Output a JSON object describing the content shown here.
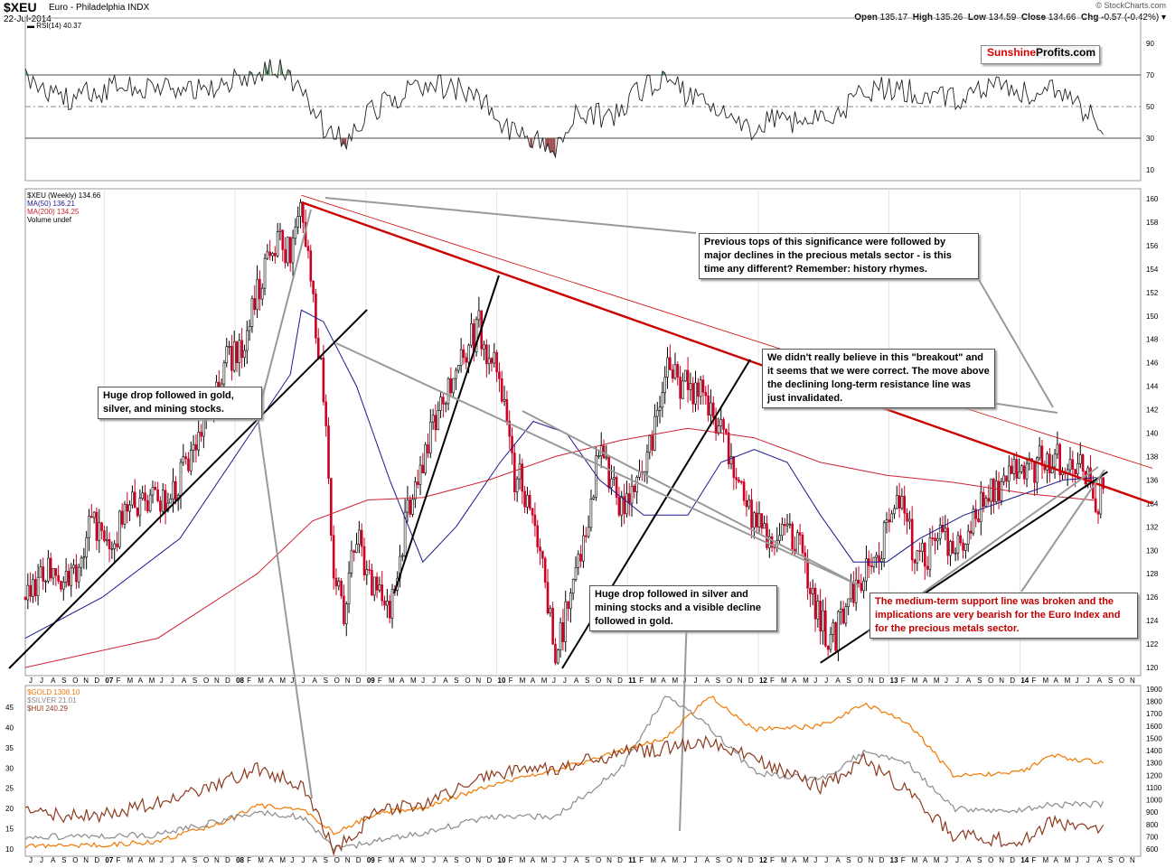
{
  "header": {
    "symbol": "$XEU",
    "name": "Euro - Philadelphia INDX",
    "date": "22-Jul-2014",
    "credit": "© StockCharts.com",
    "open_label": "Open",
    "open": "135.17",
    "high_label": "High",
    "high": "135.26",
    "low_label": "Low",
    "low": "134.59",
    "close_label": "Close",
    "close": "134.66",
    "chg_label": "Chg",
    "chg": "-0.57 (-0.42%)"
  },
  "watermark": {
    "part1": "Sunshine",
    "part2": "Profits.com"
  },
  "legends": {
    "rsi": "RSI(14) 40.37",
    "main": [
      "$XEU (Weekly) 134.66",
      "MA(50) 136.21",
      "MA(200) 134.25",
      "Volume undef"
    ],
    "bottom": [
      "$GOLD 1308.10",
      "$SILVER 21.01",
      "$HUI 240.29"
    ]
  },
  "annotations": {
    "tops": "Previous tops of this significance were followed by major declines in the precious metals sector - is this time any different? Remember: history rhymes.",
    "breakout": "We didn't really believe in this \"breakout\" and it seems that we were correct. The move above the declining long-term resistance line was just invalidated.",
    "drop2008": "Huge drop followed in gold, silver, and mining stocks.",
    "drop2010": "Huge drop followed in silver and mining stocks and a visible decline followed in gold.",
    "support": "The medium-term support line was broken and the implications are very bearish for the Euro Index and for the precious metals sector."
  },
  "colors": {
    "price_up": "#000000",
    "price_down": "#cc0022",
    "ma50": "#1a1a8c",
    "ma200": "#cc2233",
    "resistance": "#cc0000",
    "gold": "#f07800",
    "silver": "#8c8c8c",
    "hui": "#8c3a1e",
    "rsi_over": "#5a9a6a",
    "rsi_under": "#9a5050"
  },
  "chart_data": [
    {
      "type": "line",
      "title": "RSI(14) 40.37",
      "ylim": [
        0,
        100
      ],
      "y_ticks": [
        10,
        30,
        50,
        70,
        90
      ],
      "reference_lines": [
        30,
        50,
        70
      ],
      "x": [
        "2006-06",
        "2006-10",
        "2007-02",
        "2007-06",
        "2007-10",
        "2008-02",
        "2008-05",
        "2008-07",
        "2008-09",
        "2008-11",
        "2009-01",
        "2009-03",
        "2009-05",
        "2009-08",
        "2009-11",
        "2010-01",
        "2010-03",
        "2010-05",
        "2010-06",
        "2010-08",
        "2010-11",
        "2011-01",
        "2011-04",
        "2011-06",
        "2011-08",
        "2011-10",
        "2011-12",
        "2012-02",
        "2012-05",
        "2012-08",
        "2012-10",
        "2013-01",
        "2013-04",
        "2013-07",
        "2013-10",
        "2014-01",
        "2014-03",
        "2014-05",
        "2014-07"
      ],
      "values": [
        66,
        55,
        62,
        64,
        60,
        69,
        76,
        60,
        38,
        28,
        46,
        55,
        60,
        63,
        58,
        36,
        33,
        28,
        22,
        48,
        42,
        58,
        68,
        56,
        52,
        44,
        36,
        42,
        40,
        49,
        59,
        63,
        54,
        57,
        61,
        59,
        62,
        53,
        40
      ]
    },
    {
      "type": "candlestick",
      "title": "$XEU (Weekly) 134.66",
      "ylim": [
        119,
        161
      ],
      "y_ticks": [
        120,
        122,
        124,
        126,
        128,
        130,
        132,
        134,
        136,
        138,
        140,
        142,
        144,
        146,
        148,
        150,
        152,
        154,
        156,
        158,
        160
      ],
      "x_ticks": [
        "J",
        "J",
        "A",
        "S",
        "O",
        "N",
        "D",
        "07",
        "F",
        "M",
        "A",
        "M",
        "J",
        "J",
        "A",
        "S",
        "O",
        "N",
        "D",
        "08",
        "F",
        "M",
        "A",
        "M",
        "J",
        "J",
        "A",
        "S",
        "O",
        "N",
        "D",
        "09",
        "F",
        "M",
        "A",
        "M",
        "J",
        "J",
        "A",
        "S",
        "O",
        "N",
        "D",
        "10",
        "F",
        "M",
        "A",
        "M",
        "J",
        "J",
        "A",
        "S",
        "O",
        "N",
        "D",
        "11",
        "F",
        "M",
        "A",
        "M",
        "J",
        "J",
        "A",
        "S",
        "O",
        "N",
        "D",
        "12",
        "F",
        "M",
        "A",
        "M",
        "J",
        "J",
        "A",
        "S",
        "O",
        "N",
        "D",
        "13",
        "F",
        "M",
        "A",
        "M",
        "J",
        "J",
        "A",
        "S",
        "O",
        "N",
        "D",
        "14",
        "F",
        "M",
        "A",
        "M",
        "J",
        "J",
        "A",
        "S",
        "O",
        "N"
      ],
      "series": [
        {
          "name": "$XEU",
          "x": [
            "2006-06",
            "2006-08",
            "2006-10",
            "2006-12",
            "2007-02",
            "2007-04",
            "2007-06",
            "2007-08",
            "2007-10",
            "2007-12",
            "2008-02",
            "2008-04",
            "2008-06",
            "2008-07",
            "2008-08",
            "2008-09",
            "2008-10",
            "2008-11",
            "2008-12",
            "2009-01",
            "2009-03",
            "2009-05",
            "2009-07",
            "2009-09",
            "2009-11",
            "2010-01",
            "2010-02",
            "2010-04",
            "2010-06",
            "2010-08",
            "2010-10",
            "2010-12",
            "2011-02",
            "2011-04",
            "2011-06",
            "2011-08",
            "2011-10",
            "2011-12",
            "2012-02",
            "2012-04",
            "2012-06",
            "2012-07",
            "2012-09",
            "2012-11",
            "2013-01",
            "2013-03",
            "2013-05",
            "2013-07",
            "2013-09",
            "2013-11",
            "2014-01",
            "2014-03",
            "2014-05",
            "2014-07"
          ],
          "values": [
            126,
            128,
            127,
            132,
            131,
            134,
            134,
            136,
            141,
            146,
            148,
            156,
            156,
            159,
            151,
            143,
            127,
            125,
            132,
            128,
            125,
            135,
            141,
            146,
            149,
            145,
            137,
            134,
            121,
            128,
            139,
            133,
            137,
            145,
            144,
            143,
            137,
            132,
            131,
            131,
            124,
            122,
            127,
            129,
            134,
            129,
            131,
            131,
            135,
            136,
            137,
            138,
            138,
            134.66
          ]
        },
        {
          "name": "MA(50) 136.21",
          "x": [
            "2006-06",
            "2007-01",
            "2007-08",
            "2008-01",
            "2008-06",
            "2008-07",
            "2008-09",
            "2008-12",
            "2009-03",
            "2009-06",
            "2009-09",
            "2010-01",
            "2010-04",
            "2010-07",
            "2010-10",
            "2011-02",
            "2011-06",
            "2011-09",
            "2011-12",
            "2012-03",
            "2012-06",
            "2012-09",
            "2012-12",
            "2013-03",
            "2013-07",
            "2013-10",
            "2014-01",
            "2014-04",
            "2014-07"
          ],
          "values": [
            122.5,
            126,
            131,
            138,
            145,
            150.5,
            149.5,
            144,
            136,
            129,
            132,
            137.5,
            141,
            140,
            136,
            133,
            133,
            137.5,
            138.6,
            137.5,
            133,
            129,
            129,
            131,
            133,
            134,
            135,
            136,
            136.21
          ]
        },
        {
          "name": "MA(200) 134.25",
          "x": [
            "2006-06",
            "2007-06",
            "2008-03",
            "2008-08",
            "2009-01",
            "2009-06",
            "2009-12",
            "2010-06",
            "2010-12",
            "2011-06",
            "2011-12",
            "2012-06",
            "2012-12",
            "2013-06",
            "2014-01",
            "2014-07"
          ],
          "values": [
            120,
            122.5,
            128,
            132.5,
            134.3,
            134.5,
            136,
            138,
            139.4,
            140.4,
            139.6,
            137.5,
            136.4,
            135.8,
            134.8,
            134.25
          ]
        }
      ],
      "trend_lines": [
        {
          "label": "long-term resistance (thick)",
          "from": [
            "2008-07",
            159.7
          ],
          "to": [
            "2014-11",
            134
          ]
        },
        {
          "label": "long-term resistance (thin)",
          "from": [
            "2008-07",
            160.3
          ],
          "to": [
            "2014-11",
            137
          ]
        },
        {
          "label": "medium-term support",
          "from": [
            "2012-06",
            120.4
          ],
          "to": [
            "2014-08",
            136.7
          ]
        }
      ]
    },
    {
      "type": "line",
      "title": "$GOLD 1308.10",
      "left_axis_ticks": [
        10,
        15,
        20,
        25,
        30,
        35,
        40,
        45
      ],
      "right_axis_ticks": [
        600,
        700,
        800,
        900,
        1000,
        1100,
        1200,
        1300,
        1400,
        1500,
        1600,
        1700,
        1800,
        1900
      ],
      "series": [
        {
          "name": "$GOLD 1308.10",
          "x": [
            "2006-06",
            "2006-12",
            "2007-06",
            "2007-12",
            "2008-03",
            "2008-07",
            "2008-10",
            "2009-02",
            "2009-06",
            "2009-12",
            "2010-06",
            "2010-12",
            "2011-04",
            "2011-08",
            "2011-12",
            "2012-06",
            "2012-10",
            "2013-02",
            "2013-06",
            "2013-12",
            "2014-03",
            "2014-07"
          ],
          "values": [
            620,
            630,
            660,
            820,
            950,
            930,
            730,
            900,
            930,
            1120,
            1240,
            1400,
            1500,
            1850,
            1570,
            1600,
            1780,
            1620,
            1200,
            1220,
            1360,
            1308
          ]
        },
        {
          "name": "$SILVER 21.01",
          "x": [
            "2006-06",
            "2007-06",
            "2008-03",
            "2008-07",
            "2008-10",
            "2009-06",
            "2009-12",
            "2010-06",
            "2010-12",
            "2011-04",
            "2011-08",
            "2011-12",
            "2012-06",
            "2012-10",
            "2013-02",
            "2013-06",
            "2013-12",
            "2014-03",
            "2014-07"
          ],
          "values": [
            13,
            13.5,
            19,
            18,
            10,
            14,
            18,
            18,
            30,
            48,
            40,
            29,
            27,
            34,
            31,
            20,
            19.5,
            21,
            21.01
          ]
        },
        {
          "name": "$HUI 240.29",
          "x": [
            "2006-06",
            "2006-12",
            "2007-06",
            "2007-12",
            "2008-03",
            "2008-07",
            "2008-10",
            "2009-02",
            "2009-06",
            "2009-12",
            "2010-06",
            "2010-12",
            "2011-04",
            "2011-08",
            "2011-12",
            "2012-06",
            "2012-10",
            "2013-02",
            "2013-06",
            "2013-12",
            "2014-03",
            "2014-07"
          ],
          "values": [
            320,
            300,
            360,
            440,
            500,
            430,
            160,
            330,
            350,
            480,
            500,
            560,
            580,
            600,
            540,
            420,
            530,
            400,
            230,
            200,
            280,
            240.29
          ]
        }
      ]
    }
  ]
}
